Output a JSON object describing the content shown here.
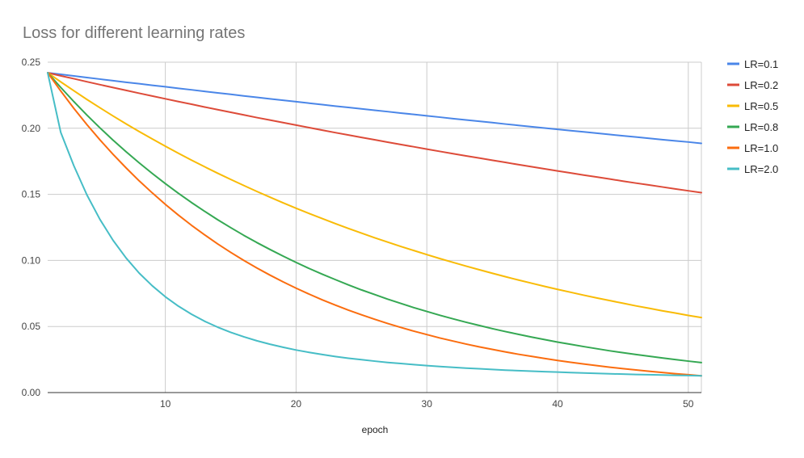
{
  "chart_data": {
    "type": "line",
    "title": "Loss for different learning rates",
    "xlabel": "epoch",
    "ylabel": "",
    "xlim": [
      1,
      51
    ],
    "ylim": [
      0,
      0.25
    ],
    "x_ticks": [
      10,
      20,
      30,
      40,
      50
    ],
    "y_ticks": [
      0,
      0.05,
      0.1,
      0.15,
      0.2,
      0.25
    ],
    "y_tick_labels": [
      "0.00",
      "0.05",
      "0.10",
      "0.15",
      "0.20",
      "0.25"
    ],
    "grid": true,
    "legend_position": "right",
    "x": [
      1,
      2,
      3,
      4,
      5,
      6,
      7,
      8,
      9,
      10,
      11,
      12,
      13,
      14,
      15,
      16,
      17,
      18,
      19,
      20,
      21,
      22,
      23,
      24,
      25,
      26,
      27,
      28,
      29,
      30,
      31,
      32,
      33,
      34,
      35,
      36,
      37,
      38,
      39,
      40,
      41,
      42,
      43,
      44,
      45,
      46,
      47,
      48,
      49,
      50,
      51
    ],
    "series": [
      {
        "name": "LR=0.1",
        "color": "#4a86e8",
        "values": [
          0.242,
          0.2408,
          0.2396,
          0.2384,
          0.2372,
          0.236,
          0.2348,
          0.2337,
          0.2325,
          0.2314,
          0.2302,
          0.2291,
          0.2279,
          0.2268,
          0.2257,
          0.2245,
          0.2234,
          0.2223,
          0.2212,
          0.2201,
          0.219,
          0.2179,
          0.2168,
          0.2158,
          0.2147,
          0.2136,
          0.2126,
          0.2115,
          0.2105,
          0.2094,
          0.2084,
          0.2073,
          0.2063,
          0.2053,
          0.2043,
          0.2032,
          0.2022,
          0.2012,
          0.2002,
          0.1992,
          0.1982,
          0.1973,
          0.1963,
          0.1953,
          0.1943,
          0.1934,
          0.1924,
          0.1914,
          0.1905,
          0.1896,
          0.1886
        ]
      },
      {
        "name": "LR=0.2",
        "color": "#dd4b39",
        "values": [
          0.242,
          0.2397,
          0.2375,
          0.2352,
          0.233,
          0.2308,
          0.2287,
          0.2265,
          0.2244,
          0.2223,
          0.2202,
          0.2182,
          0.2161,
          0.2141,
          0.2121,
          0.2101,
          0.2081,
          0.2062,
          0.2043,
          0.2024,
          0.2005,
          0.1986,
          0.1967,
          0.1949,
          0.1931,
          0.1913,
          0.1895,
          0.1877,
          0.186,
          0.1842,
          0.1825,
          0.1808,
          0.1791,
          0.1775,
          0.1758,
          0.1742,
          0.1725,
          0.1709,
          0.1693,
          0.1677,
          0.1662,
          0.1646,
          0.1631,
          0.1616,
          0.16,
          0.1585,
          0.1571,
          0.1556,
          0.1541,
          0.1527,
          0.1513
        ]
      },
      {
        "name": "LR=0.5",
        "color": "#f9bb06",
        "values": [
          0.242,
          0.2351,
          0.2284,
          0.2218,
          0.2155,
          0.2093,
          0.2033,
          0.1975,
          0.1919,
          0.1864,
          0.1811,
          0.1759,
          0.1709,
          0.166,
          0.1613,
          0.1567,
          0.1522,
          0.1479,
          0.1436,
          0.1395,
          0.1355,
          0.1317,
          0.1279,
          0.1242,
          0.1207,
          0.1172,
          0.1139,
          0.1106,
          0.1075,
          0.1044,
          0.1014,
          0.0985,
          0.0957,
          0.093,
          0.0903,
          0.0877,
          0.0852,
          0.0828,
          0.0804,
          0.0781,
          0.0759,
          0.0737,
          0.0716,
          0.0696,
          0.0676,
          0.0656,
          0.0638,
          0.0619,
          0.0602,
          0.0584,
          0.0568
        ]
      },
      {
        "name": "LR=0.8",
        "color": "#35a853",
        "values": [
          0.242,
          0.2309,
          0.2202,
          0.21,
          0.2003,
          0.191,
          0.1822,
          0.1738,
          0.1658,
          0.1581,
          0.1508,
          0.1438,
          0.1372,
          0.1308,
          0.1248,
          0.119,
          0.1135,
          0.1083,
          0.1033,
          0.0985,
          0.0939,
          0.0896,
          0.0855,
          0.0815,
          0.0777,
          0.0742,
          0.0707,
          0.0675,
          0.0643,
          0.0614,
          0.0585,
          0.0558,
          0.0532,
          0.0508,
          0.0484,
          0.0462,
          0.0441,
          0.042,
          0.0401,
          0.0382,
          0.0365,
          0.0348,
          0.0332,
          0.0316,
          0.0302,
          0.0288,
          0.0275,
          0.0262,
          0.025,
          0.0238,
          0.0227
        ]
      },
      {
        "name": "LR=1.0",
        "color": "#fb6d0f",
        "values": [
          0.242,
          0.2282,
          0.2151,
          0.2028,
          0.1912,
          0.1803,
          0.17,
          0.1602,
          0.1511,
          0.1424,
          0.1343,
          0.1266,
          0.1194,
          0.1125,
          0.1061,
          0.1,
          0.0943,
          0.0889,
          0.0838,
          0.079,
          0.0745,
          0.0702,
          0.0662,
          0.0624,
          0.0589,
          0.0555,
          0.0523,
          0.0493,
          0.0465,
          0.0439,
          0.0413,
          0.039,
          0.0367,
          0.0346,
          0.0327,
          0.0308,
          0.029,
          0.0274,
          0.0258,
          0.0243,
          0.0229,
          0.0216,
          0.0204,
          0.0192,
          0.0181,
          0.0171,
          0.0161,
          0.0152,
          0.0143,
          0.0135,
          0.0127
        ]
      },
      {
        "name": "LR=2.0",
        "color": "#46bdc6",
        "values": [
          0.242,
          0.1969,
          0.1717,
          0.1496,
          0.131,
          0.1152,
          0.1018,
          0.0904,
          0.0808,
          0.0725,
          0.0654,
          0.0593,
          0.054,
          0.0495,
          0.0456,
          0.0422,
          0.0392,
          0.0366,
          0.0343,
          0.0322,
          0.0304,
          0.0288,
          0.0273,
          0.026,
          0.0249,
          0.0238,
          0.0228,
          0.022,
          0.0212,
          0.0204,
          0.0197,
          0.0191,
          0.0185,
          0.018,
          0.0175,
          0.017,
          0.0166,
          0.0162,
          0.0158,
          0.0155,
          0.0151,
          0.0148,
          0.0145,
          0.0142,
          0.014,
          0.0137,
          0.0135,
          0.0133,
          0.0131,
          0.0129,
          0.0127
        ]
      }
    ]
  }
}
